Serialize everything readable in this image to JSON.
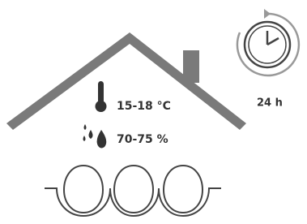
{
  "temperature": "15-18 °C",
  "humidity": "70-75 %",
  "duration": "24 h"
}
